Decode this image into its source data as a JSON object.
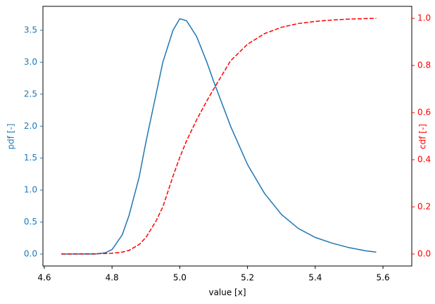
{
  "chart_data": {
    "type": "line",
    "xlabel": "value [x]",
    "ylabel": "pdf [-]",
    "y2label": "cdf [-]",
    "x": [
      4.65,
      4.75,
      4.78,
      4.8,
      4.83,
      4.85,
      4.88,
      4.9,
      4.93,
      4.95,
      4.98,
      5.0,
      5.02,
      5.05,
      5.08,
      5.1,
      5.15,
      5.2,
      5.25,
      5.3,
      5.35,
      5.4,
      5.45,
      5.5,
      5.55,
      5.58
    ],
    "series": [
      {
        "name": "pdf",
        "color": "#1f77b4",
        "style": "solid",
        "axis": "y",
        "values": [
          0,
          0.0,
          0.02,
          0.07,
          0.3,
          0.6,
          1.2,
          1.75,
          2.5,
          3.0,
          3.5,
          3.68,
          3.65,
          3.4,
          3.0,
          2.7,
          2.0,
          1.4,
          0.95,
          0.62,
          0.4,
          0.26,
          0.17,
          0.1,
          0.05,
          0.03
        ]
      },
      {
        "name": "cdf",
        "color": "#ff0000",
        "style": "dashed",
        "axis": "y2",
        "values": [
          0,
          0.001,
          0.002,
          0.003,
          0.008,
          0.015,
          0.04,
          0.07,
          0.14,
          0.2,
          0.33,
          0.41,
          0.48,
          0.57,
          0.65,
          0.7,
          0.82,
          0.89,
          0.935,
          0.962,
          0.978,
          0.987,
          0.993,
          0.997,
          0.999,
          1.0
        ]
      }
    ],
    "xlim": [
      4.596,
      5.685
    ],
    "xticks": [
      4.6,
      4.8,
      {
        "value": 5,
        "label": "5.0"
      },
      5.2,
      5.4,
      5.6
    ],
    "ylim": [
      -0.187,
      3.874
    ],
    "yticks": [
      {
        "value": 0,
        "label": "0.0"
      },
      0.5,
      {
        "value": 1,
        "label": "1.0"
      },
      1.5,
      {
        "value": 2,
        "label": "2.0"
      },
      2.5,
      {
        "value": 3,
        "label": "3.0"
      },
      3.5
    ],
    "y2lim": [
      -0.051,
      1.051
    ],
    "y2ticks": [
      {
        "value": 0,
        "label": "0.0"
      },
      0.2,
      0.4,
      0.6,
      0.8,
      {
        "value": 1,
        "label": "1.0"
      }
    ],
    "grid": false
  }
}
